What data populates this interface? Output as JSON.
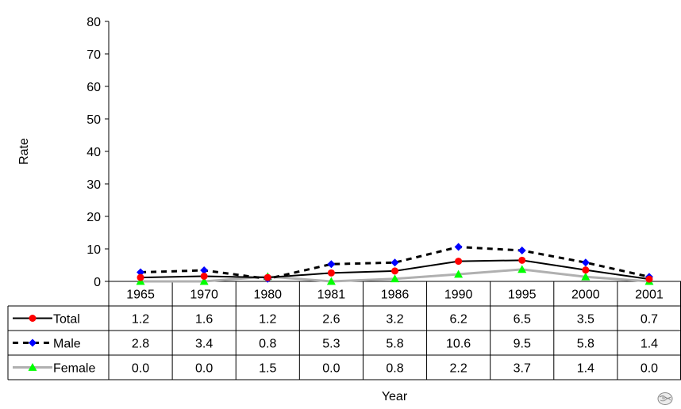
{
  "chart_data": {
    "type": "line",
    "title": "",
    "xlabel": "Year",
    "ylabel": "Rate",
    "ylim": [
      0,
      80
    ],
    "yticks": [
      "0",
      "10",
      "20",
      "30",
      "40",
      "50",
      "60",
      "70",
      "80"
    ],
    "grid": false,
    "legend_placement": "data-table",
    "categories": [
      "1965",
      "1970",
      "1980",
      "1981",
      "1986",
      "1990",
      "1995",
      "2000",
      "2001"
    ],
    "series": [
      {
        "name": "Total",
        "marker": "circle",
        "line_style": "solid",
        "line_color": "#000000",
        "marker_color": "#ff0000",
        "values": [
          1.2,
          1.6,
          1.2,
          2.6,
          3.2,
          6.2,
          6.5,
          3.5,
          0.7
        ],
        "labels": [
          "1.2",
          "1.6",
          "1.2",
          "2.6",
          "3.2",
          "6.2",
          "6.5",
          "3.5",
          "0.7"
        ]
      },
      {
        "name": "Male",
        "marker": "diamond",
        "line_style": "dashed",
        "line_color": "#000000",
        "marker_color": "#0000ff",
        "values": [
          2.8,
          3.4,
          0.8,
          5.3,
          5.8,
          10.6,
          9.5,
          5.8,
          1.4
        ],
        "labels": [
          "2.8",
          "3.4",
          "0.8",
          "5.3",
          "5.8",
          "10.6",
          "9.5",
          "5.8",
          "1.4"
        ]
      },
      {
        "name": "Female",
        "marker": "triangle",
        "line_style": "solid",
        "line_color": "#b0b0b0",
        "marker_color": "#00ff00",
        "values": [
          0.0,
          0.0,
          1.5,
          0.0,
          0.8,
          2.2,
          3.7,
          1.4,
          0.0
        ],
        "labels": [
          "0.0",
          "0.0",
          "1.5",
          "0.0",
          "0.8",
          "2.2",
          "3.7",
          "1.4",
          "0.0"
        ]
      }
    ]
  },
  "corner_icon": "globe-seal-icon"
}
